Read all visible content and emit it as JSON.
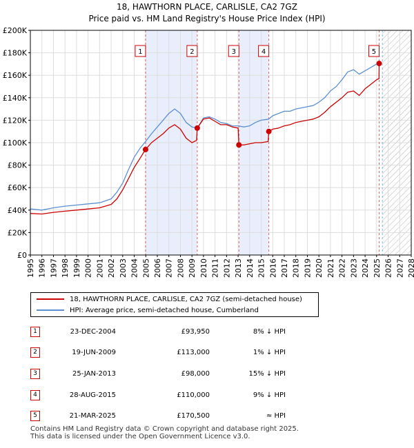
{
  "title_line1": "18, HAWTHORN PLACE, CARLISLE, CA2 7GZ",
  "title_line2": "Price paid vs. HM Land Registry's House Price Index (HPI)",
  "chart_data": {
    "type": "line",
    "xlim": [
      1995,
      2028
    ],
    "ylim": [
      0,
      200000
    ],
    "y_ticks": [
      0,
      20000,
      40000,
      60000,
      80000,
      100000,
      120000,
      140000,
      160000,
      180000,
      200000
    ],
    "y_tick_labels": [
      "£0",
      "£20K",
      "£40K",
      "£60K",
      "£80K",
      "£100K",
      "£120K",
      "£140K",
      "£160K",
      "£180K",
      "£200K"
    ],
    "x_ticks": [
      1995,
      1996,
      1997,
      1998,
      1999,
      2000,
      2001,
      2002,
      2003,
      2004,
      2005,
      2006,
      2007,
      2008,
      2009,
      2010,
      2011,
      2012,
      2013,
      2014,
      2015,
      2016,
      2017,
      2018,
      2019,
      2020,
      2021,
      2022,
      2023,
      2024,
      2025,
      2026,
      2027,
      2028
    ],
    "x_tick_labels": [
      "1995",
      "1996",
      "1997",
      "1998",
      "1999",
      "2000",
      "2001",
      "2002",
      "2003",
      "2004",
      "2005",
      "2006",
      "2007",
      "2008",
      "2009",
      "2010",
      "2011",
      "2012",
      "2013",
      "2014",
      "2015",
      "2016",
      "2017",
      "2018",
      "2019",
      "2020",
      "2021",
      "2022",
      "2023",
      "2024",
      "2025",
      "2026",
      "2027",
      "2028"
    ],
    "grid": true,
    "shaded_periods": [
      [
        2004.98,
        2009.46
      ],
      [
        2013.07,
        2015.66
      ]
    ],
    "future_hatch_start": 2025.5,
    "series": [
      {
        "name": "HPI: Average price, semi-detached house, Cumberland",
        "color": "#5b8fd3",
        "x": [
          1995.0,
          1996.0,
          1997.0,
          1998.0,
          1999.0,
          2000.0,
          2001.0,
          2002.0,
          2002.5,
          2003.0,
          2003.5,
          2004.0,
          2004.5,
          2004.98,
          2005.5,
          2006.0,
          2006.5,
          2007.0,
          2007.5,
          2008.0,
          2008.5,
          2009.0,
          2009.46,
          2010.0,
          2010.5,
          2011.0,
          2011.5,
          2012.0,
          2012.5,
          2013.0,
          2013.5,
          2014.0,
          2014.5,
          2015.0,
          2015.66,
          2016.0,
          2016.5,
          2017.0,
          2017.5,
          2018.0,
          2018.5,
          2019.0,
          2019.5,
          2020.0,
          2020.5,
          2021.0,
          2021.5,
          2022.0,
          2022.5,
          2023.0,
          2023.5,
          2024.0,
          2024.5,
          2025.0,
          2025.22
        ],
        "values": [
          41000,
          40000,
          42000,
          43500,
          44500,
          45500,
          46500,
          50000,
          56000,
          64000,
          76000,
          87000,
          95000,
          101000,
          108000,
          114000,
          120000,
          126000,
          130000,
          126000,
          118000,
          114000,
          113000,
          122000,
          123000,
          121000,
          118000,
          117000,
          115000,
          115000,
          114000,
          115000,
          118000,
          120000,
          121000,
          124000,
          126000,
          128000,
          128000,
          130000,
          131000,
          132000,
          133000,
          136000,
          140000,
          146000,
          150000,
          156000,
          163000,
          165000,
          161000,
          164000,
          167000,
          170000,
          171000
        ]
      },
      {
        "name": "18, HAWTHORN PLACE, CARLISLE, CA2 7GZ (semi-detached house)",
        "color": "#cc0000",
        "x": [
          1995.0,
          1996.0,
          1997.0,
          1998.0,
          1999.0,
          2000.0,
          2001.0,
          2002.0,
          2002.5,
          2003.0,
          2003.5,
          2004.0,
          2004.5,
          2004.98,
          2005.5,
          2006.0,
          2006.5,
          2007.0,
          2007.5,
          2008.0,
          2008.5,
          2009.0,
          2009.4,
          2009.46,
          2010.0,
          2010.5,
          2011.0,
          2011.5,
          2012.0,
          2012.5,
          2013.0,
          2013.07,
          2013.5,
          2014.0,
          2014.5,
          2015.0,
          2015.6,
          2015.66,
          2016.0,
          2016.5,
          2017.0,
          2017.5,
          2018.0,
          2018.5,
          2019.0,
          2019.5,
          2020.0,
          2020.5,
          2021.0,
          2021.5,
          2022.0,
          2022.5,
          2023.0,
          2023.5,
          2024.0,
          2024.5,
          2025.0,
          2025.21,
          2025.22
        ],
        "values": [
          37000,
          36500,
          38000,
          39000,
          40000,
          41000,
          42000,
          45000,
          50000,
          58000,
          68000,
          78000,
          86000,
          93950,
          100000,
          104000,
          108000,
          113000,
          116000,
          112000,
          104000,
          100000,
          102000,
          113000,
          121000,
          122000,
          119000,
          116000,
          116000,
          114000,
          113000,
          98000,
          98000,
          99000,
          100000,
          100000,
          101000,
          110000,
          112000,
          113000,
          115000,
          116000,
          118000,
          119000,
          120000,
          121000,
          123000,
          127000,
          132000,
          136000,
          140000,
          145000,
          146000,
          142000,
          148000,
          152000,
          156000,
          157000,
          170500
        ]
      }
    ],
    "sales": [
      {
        "label": "1",
        "x": 2004.98,
        "value": 93950
      },
      {
        "label": "2",
        "x": 2009.46,
        "value": 113000
      },
      {
        "label": "3",
        "x": 2013.07,
        "value": 98000
      },
      {
        "label": "4",
        "x": 2015.66,
        "value": 110000
      },
      {
        "label": "5",
        "x": 2025.22,
        "value": 170500
      }
    ]
  },
  "legend": {
    "property": "18, HAWTHORN PLACE, CARLISLE, CA2 7GZ (semi-detached house)",
    "hpi": "HPI: Average price, semi-detached house, Cumberland",
    "property_color": "#cc0000",
    "hpi_color": "#5b8fd3"
  },
  "transactions": [
    {
      "num": "1",
      "date": "23-DEC-2004",
      "price": "£93,950",
      "hpi": "8% ↓ HPI"
    },
    {
      "num": "2",
      "date": "19-JUN-2009",
      "price": "£113,000",
      "hpi": "1% ↓ HPI"
    },
    {
      "num": "3",
      "date": "25-JAN-2013",
      "price": "£98,000",
      "hpi": "15% ↓ HPI"
    },
    {
      "num": "4",
      "date": "28-AUG-2015",
      "price": "£110,000",
      "hpi": "9% ↓ HPI"
    },
    {
      "num": "5",
      "date": "21-MAR-2025",
      "price": "£170,500",
      "hpi": "≈ HPI"
    }
  ],
  "footer": {
    "line1": "Contains HM Land Registry data © Crown copyright and database right 2025.",
    "line2": "This data is licensed under the Open Government Licence v3.0."
  }
}
